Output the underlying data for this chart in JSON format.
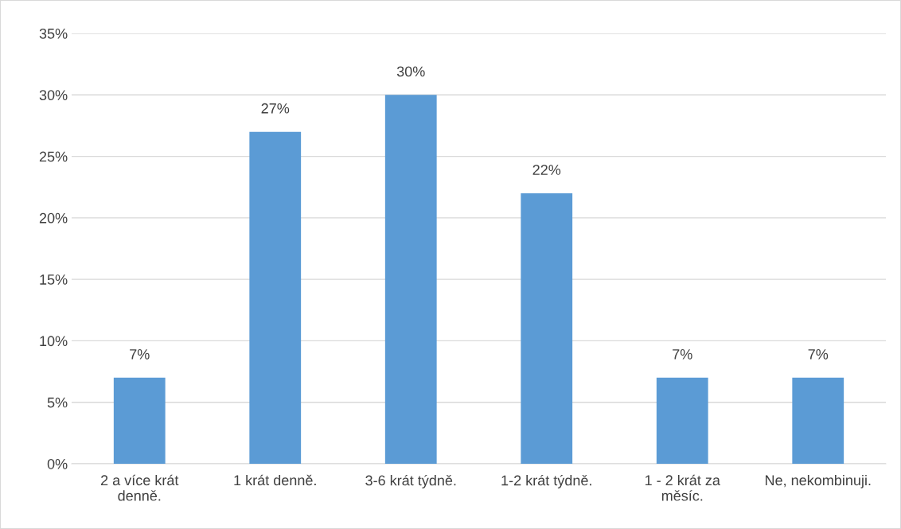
{
  "chart_data": {
    "type": "bar",
    "categories": [
      "2 a více krát\ndenně.",
      "1 krát denně.",
      "3-6 krát týdně.",
      "1-2 krát týdně.",
      "1 - 2 krát za\nměsíc.",
      "Ne, nekombinuji."
    ],
    "values": [
      7,
      27,
      30,
      22,
      7,
      7
    ],
    "value_labels": [
      "7%",
      "27%",
      "30%",
      "22%",
      "7%",
      "7%"
    ],
    "color": "#5b9bd5",
    "ylim": [
      0,
      35
    ],
    "yticks": [
      {
        "value": 0,
        "label": "0%"
      },
      {
        "value": 5,
        "label": "5%"
      },
      {
        "value": 10,
        "label": "10%"
      },
      {
        "value": 15,
        "label": "15%"
      },
      {
        "value": 20,
        "label": "20%"
      },
      {
        "value": 25,
        "label": "25%"
      },
      {
        "value": 30,
        "label": "30%"
      },
      {
        "value": 35,
        "label": "35%"
      }
    ],
    "grid": "y"
  }
}
